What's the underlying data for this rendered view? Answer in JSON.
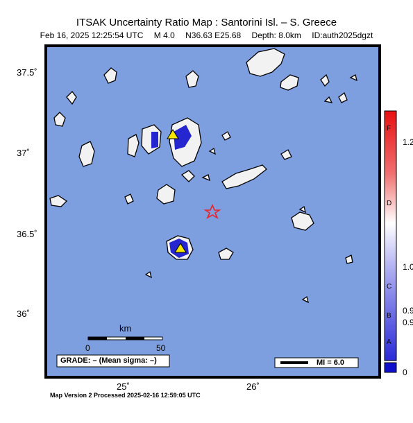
{
  "header": {
    "title": "ITSAK Uncertainty Ratio Map : Santorini Isl. – S. Greece",
    "date": "Feb 16, 2025 12:25:54 UTC",
    "magnitude": "M 4.0",
    "location": "N36.63 E25.68",
    "depth": "Depth: 8.0km",
    "event_id": "ID:auth2025dgzt"
  },
  "axes": {
    "lat_labels": [
      "37.5˚",
      "37˚",
      "36.5˚",
      "36˚"
    ],
    "lon_labels": [
      "25˚",
      "26˚"
    ]
  },
  "scalebar": {
    "unit": "km",
    "min_label": "0",
    "max_label": "50"
  },
  "grade_box": "GRADE: – (Mean sigma: –)",
  "mi_legend": "MI = 6.0",
  "colorbar": {
    "letters": [
      "F",
      "D",
      "C",
      "B",
      "A"
    ],
    "values": [
      "1.2",
      "1.0",
      "0.9",
      "0.9",
      "0"
    ]
  },
  "footer": "Map Version 2 Processed 2025-02-16 12:59:05 UTC",
  "colors": {
    "sea": "#7d9fe0",
    "land": "#f2f2f2",
    "epicenter": "#e8242a",
    "station": "#f5e600",
    "low_ratio": "#1010cc"
  }
}
